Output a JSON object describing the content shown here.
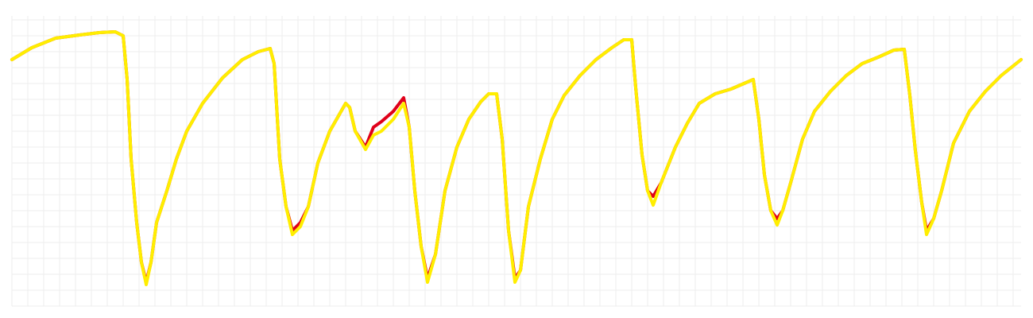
{
  "chart_data": {
    "type": "line",
    "x": [
      0,
      25,
      55,
      85,
      110,
      130,
      140,
      145,
      150,
      157,
      163,
      169,
      175,
      182,
      195,
      207,
      220,
      240,
      265,
      290,
      310,
      325,
      330,
      337,
      345,
      353,
      363,
      373,
      385,
      400,
      420,
      425,
      432,
      445,
      455,
      465,
      480,
      493,
      500,
      507,
      515,
      523,
      533,
      545,
      560,
      575,
      590,
      600,
      610,
      617,
      625,
      633,
      640,
      650,
      665,
      680,
      695,
      715,
      735,
      755,
      770,
      780,
      785,
      793,
      800,
      807,
      817,
      835,
      850,
      865,
      885,
      905,
      933,
      940,
      947,
      955,
      963,
      970,
      980,
      995,
      1010,
      1030,
      1050,
      1070,
      1090,
      1110,
      1123,
      1130,
      1137,
      1145,
      1151,
      1160,
      1170,
      1185,
      1205,
      1225,
      1245,
      1270
    ],
    "series": [
      {
        "color": "#e0001a",
        "values": [
          310,
          325,
          337,
          341,
          344,
          345,
          340,
          285,
          185,
          105,
          55,
          30,
          55,
          105,
          145,
          185,
          220,
          255,
          287,
          310,
          320,
          324,
          305,
          185,
          125,
          95,
          105,
          125,
          180,
          220,
          255,
          250,
          220,
          200,
          225,
          232,
          245,
          262,
          225,
          145,
          75,
          35,
          65,
          145,
          200,
          235,
          257,
          267,
          267,
          210,
          95,
          35,
          45,
          125,
          185,
          235,
          265,
          290,
          310,
          325,
          335,
          335,
          275,
          190,
          145,
          138,
          155,
          200,
          230,
          255,
          267,
          273,
          285,
          235,
          165,
          120,
          110,
          120,
          155,
          210,
          245,
          270,
          290,
          305,
          313,
          322,
          323,
          265,
          195,
          130,
          95,
          110,
          145,
          205,
          245,
          270,
          290,
          310
        ]
      },
      {
        "color": "#ffee00",
        "values": [
          310,
          325,
          337,
          341,
          344,
          345,
          340,
          285,
          185,
          105,
          55,
          27,
          55,
          105,
          145,
          185,
          220,
          255,
          287,
          310,
          320,
          324,
          305,
          185,
          125,
          90,
          100,
          125,
          180,
          220,
          255,
          250,
          220,
          197,
          215,
          220,
          235,
          255,
          225,
          145,
          75,
          30,
          65,
          145,
          200,
          235,
          257,
          267,
          267,
          210,
          95,
          30,
          45,
          125,
          185,
          235,
          265,
          290,
          310,
          325,
          335,
          335,
          275,
          190,
          145,
          127,
          155,
          200,
          230,
          255,
          267,
          273,
          285,
          235,
          165,
          120,
          102,
          120,
          155,
          210,
          245,
          270,
          290,
          305,
          313,
          322,
          323,
          265,
          195,
          130,
          90,
          110,
          145,
          205,
          245,
          270,
          290,
          310
        ]
      }
    ],
    "xlim": [
      0,
      1270
    ],
    "ylim": [
      0,
      365
    ],
    "xticks": [
      0,
      20,
      40,
      60,
      80,
      100,
      120,
      140,
      160,
      180,
      200,
      220,
      240,
      260,
      280,
      300,
      320,
      340,
      360,
      380,
      400,
      420,
      440,
      460,
      480,
      500,
      520,
      540,
      560,
      580,
      600,
      620,
      640,
      660,
      680,
      700,
      720,
      740,
      760,
      780,
      800,
      820,
      840,
      860,
      880,
      900,
      920,
      940,
      960,
      980,
      1000,
      1020,
      1040,
      1060,
      1080,
      1100,
      1120,
      1140,
      1160,
      1180,
      1200,
      1220,
      1240,
      1260
    ],
    "yticks": [
      0,
      20,
      40,
      60,
      80,
      100,
      120,
      140,
      160,
      180,
      200,
      220,
      240,
      260,
      280,
      300,
      320,
      340,
      360
    ],
    "grid": true,
    "line_width": 4
  }
}
